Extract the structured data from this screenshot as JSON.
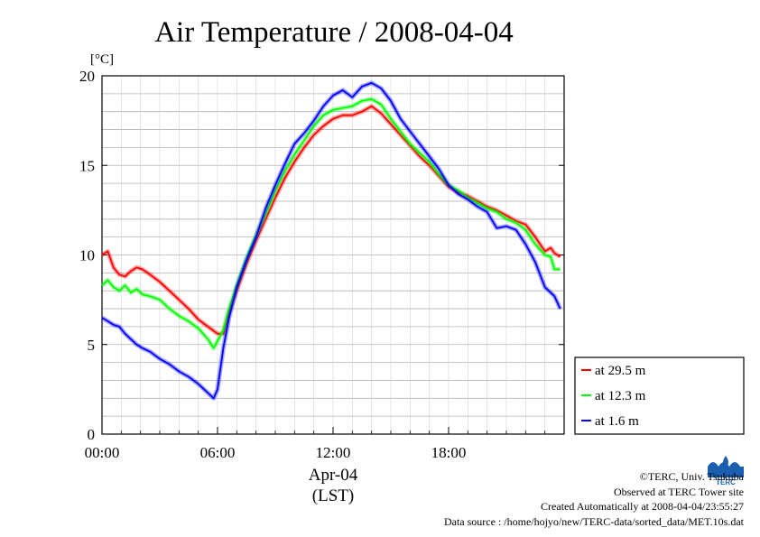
{
  "chart_data": {
    "type": "line",
    "title": "Air Temperature / 2008-04-04",
    "ylabel": "[°C]",
    "xlabel": "Apr-04",
    "xlabel_sub": "(LST)",
    "xlim": [
      0,
      24
    ],
    "ylim": [
      0,
      20
    ],
    "xticks": [
      {
        "value": 0,
        "label": "00:00"
      },
      {
        "value": 6,
        "label": "06:00"
      },
      {
        "value": 12,
        "label": "12:00"
      },
      {
        "value": 18,
        "label": "18:00"
      }
    ],
    "yticks": [
      0,
      5,
      10,
      15,
      20
    ],
    "grid": true,
    "legend_position": "bottom-right outside",
    "series": [
      {
        "name": "at 29.5 m",
        "color": "#ff0000",
        "x": [
          0,
          0.3,
          0.6,
          0.9,
          1.2,
          1.5,
          1.8,
          2.1,
          2.5,
          3.0,
          3.5,
          4.0,
          4.5,
          5.0,
          5.5,
          6.0,
          6.3,
          6.6,
          7.0,
          7.5,
          8.0,
          8.5,
          9.0,
          9.5,
          10.0,
          10.5,
          11.0,
          11.5,
          12.0,
          12.5,
          13.0,
          13.5,
          14.0,
          14.5,
          15.0,
          15.5,
          16.0,
          16.5,
          17.0,
          17.5,
          18.0,
          18.5,
          19.0,
          19.5,
          20.0,
          20.5,
          21.0,
          21.5,
          22.0,
          22.5,
          23.0,
          23.3,
          23.5,
          23.8
        ],
        "values": [
          10.0,
          10.2,
          9.3,
          8.9,
          8.8,
          9.1,
          9.3,
          9.2,
          8.9,
          8.5,
          8.0,
          7.5,
          7.0,
          6.4,
          6.0,
          5.6,
          5.6,
          6.8,
          8.0,
          9.5,
          10.8,
          12.0,
          13.2,
          14.3,
          15.2,
          16.0,
          16.7,
          17.2,
          17.6,
          17.8,
          17.8,
          18.0,
          18.3,
          17.9,
          17.3,
          16.7,
          16.1,
          15.5,
          15.0,
          14.4,
          13.8,
          13.5,
          13.3,
          13.0,
          12.7,
          12.5,
          12.2,
          11.9,
          11.7,
          11.0,
          10.2,
          10.4,
          10.1,
          9.9
        ]
      },
      {
        "name": "at 12.3 m",
        "color": "#00ff00",
        "x": [
          0,
          0.3,
          0.6,
          0.9,
          1.2,
          1.5,
          1.8,
          2.1,
          2.5,
          3.0,
          3.5,
          4.0,
          4.5,
          5.0,
          5.5,
          5.8,
          6.0,
          6.3,
          6.6,
          7.0,
          7.5,
          8.0,
          8.5,
          9.0,
          9.5,
          10.0,
          10.5,
          11.0,
          11.5,
          12.0,
          12.5,
          13.0,
          13.5,
          14.0,
          14.5,
          15.0,
          15.5,
          16.0,
          16.5,
          17.0,
          17.5,
          18.0,
          18.5,
          19.0,
          19.5,
          20.0,
          20.5,
          21.0,
          21.5,
          22.0,
          22.5,
          23.0,
          23.3,
          23.5,
          23.8
        ],
        "values": [
          8.3,
          8.6,
          8.2,
          8.0,
          8.3,
          7.9,
          8.1,
          7.8,
          7.7,
          7.5,
          7.0,
          6.6,
          6.3,
          5.9,
          5.3,
          4.8,
          5.2,
          5.8,
          7.0,
          8.3,
          9.8,
          11.1,
          12.3,
          13.6,
          14.7,
          15.6,
          16.4,
          17.2,
          17.8,
          18.1,
          18.2,
          18.3,
          18.6,
          18.7,
          18.4,
          17.6,
          16.9,
          16.2,
          15.7,
          15.2,
          14.5,
          13.9,
          13.6,
          13.2,
          12.9,
          12.6,
          12.4,
          12.0,
          11.8,
          11.4,
          10.6,
          10.0,
          9.9,
          9.2,
          9.2
        ]
      },
      {
        "name": "at 1.6 m",
        "color": "#0000ff",
        "x": [
          0,
          0.3,
          0.6,
          0.9,
          1.2,
          1.5,
          1.8,
          2.1,
          2.5,
          3.0,
          3.5,
          4.0,
          4.5,
          5.0,
          5.5,
          5.8,
          6.0,
          6.3,
          6.6,
          7.0,
          7.5,
          8.0,
          8.5,
          9.0,
          9.5,
          10.0,
          10.5,
          11.0,
          11.5,
          12.0,
          12.5,
          13.0,
          13.5,
          14.0,
          14.5,
          15.0,
          15.5,
          16.0,
          16.5,
          17.0,
          17.5,
          18.0,
          18.5,
          19.0,
          19.5,
          20.0,
          20.5,
          21.0,
          21.5,
          22.0,
          22.5,
          23.0,
          23.3,
          23.5,
          23.8
        ],
        "values": [
          6.5,
          6.3,
          6.1,
          6.0,
          5.6,
          5.3,
          5.0,
          4.8,
          4.6,
          4.2,
          3.9,
          3.5,
          3.2,
          2.8,
          2.3,
          2.0,
          2.5,
          4.8,
          6.5,
          8.2,
          9.7,
          11.0,
          12.6,
          13.9,
          15.1,
          16.2,
          16.8,
          17.5,
          18.3,
          18.9,
          19.2,
          18.8,
          19.4,
          19.6,
          19.3,
          18.6,
          17.6,
          16.9,
          16.2,
          15.5,
          14.8,
          13.9,
          13.4,
          13.1,
          12.7,
          12.4,
          11.5,
          11.6,
          11.4,
          10.6,
          9.6,
          8.2,
          7.9,
          7.7,
          7.0
        ]
      }
    ]
  },
  "credits": {
    "line1": "©TERC, Univ. Tsukuba",
    "line2": "Observed at TERC Tower site",
    "line3": "Created Automatically at 2008-04-04/23:55:27",
    "line4": "Data source : /home/hojyo/new/TERC-data/sorted_data/MET.10s.dat"
  },
  "logo": {
    "icon": "terc-logo-icon",
    "text": "TERC",
    "color": "#1a5fb0"
  }
}
